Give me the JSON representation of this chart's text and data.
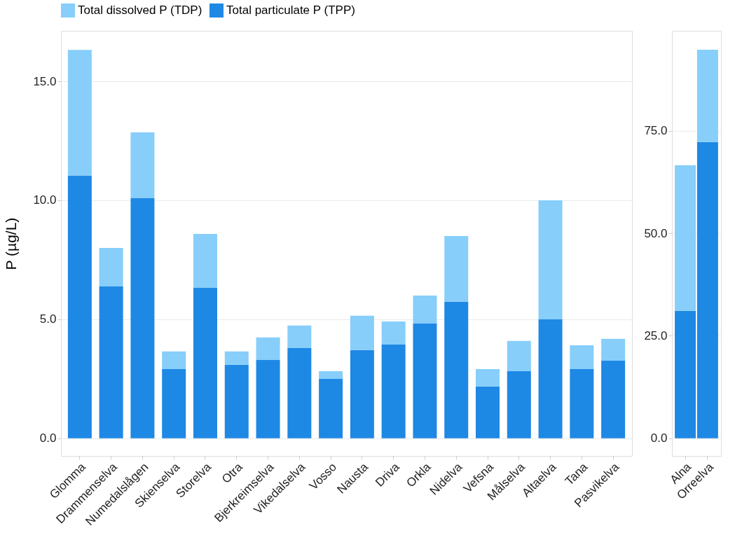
{
  "chart_data": [
    {
      "type": "bar",
      "stacked": true,
      "ylabel": "P (µg/L)",
      "legend": "top",
      "grid": "y",
      "categories": [
        "Glomma",
        "Drammenselva",
        "Numedalslågen",
        "Skienselva",
        "Storelva",
        "Otra",
        "Bjerkreimselva",
        "Vikedalselva",
        "Vosso",
        "Nausta",
        "Driva",
        "Orkla",
        "Nidelva",
        "Vefsna",
        "Målselva",
        "Altaelva",
        "Tana",
        "Pasvikelva"
      ],
      "series": [
        {
          "name": "Total particulate P (TPP)",
          "color": "#1e88e5",
          "values": [
            11.03,
            6.38,
            10.09,
            2.91,
            6.32,
            3.09,
            3.29,
            3.79,
            2.5,
            3.71,
            3.94,
            4.82,
            5.74,
            2.18,
            2.82,
            5.0,
            2.91,
            3.26
          ]
        },
        {
          "name": "Total dissolved P (TDP)",
          "color": "#87cefa",
          "values": [
            5.29,
            1.62,
            2.76,
            0.74,
            2.27,
            0.56,
            0.95,
            0.95,
            0.32,
            1.44,
            0.97,
            1.18,
            2.76,
            0.73,
            1.27,
            5.0,
            1.0,
            0.92
          ]
        }
      ],
      "ylim": [
        -0.74,
        17.12
      ],
      "yticks": [
        {
          "value": 0,
          "label": "0.0"
        },
        {
          "value": 5,
          "label": "5.0"
        },
        {
          "value": 10,
          "label": "10.0"
        },
        {
          "value": 15,
          "label": "15.0"
        }
      ]
    },
    {
      "type": "bar",
      "stacked": true,
      "grid": "y",
      "categories": [
        "Alna",
        "Orreelva"
      ],
      "series": [
        {
          "name": "Total particulate P (TPP)",
          "color": "#1e88e5",
          "values": [
            31.1,
            72.3
          ]
        },
        {
          "name": "Total dissolved P (TDP)",
          "color": "#87cefa",
          "values": [
            35.5,
            22.5
          ]
        }
      ],
      "ylim": [
        -4.3,
        99.4
      ],
      "yticks": [
        {
          "value": 0,
          "label": "0.0"
        },
        {
          "value": 25,
          "label": "25.0"
        },
        {
          "value": 50,
          "label": "50.0"
        },
        {
          "value": 75,
          "label": "75.0"
        }
      ]
    }
  ]
}
